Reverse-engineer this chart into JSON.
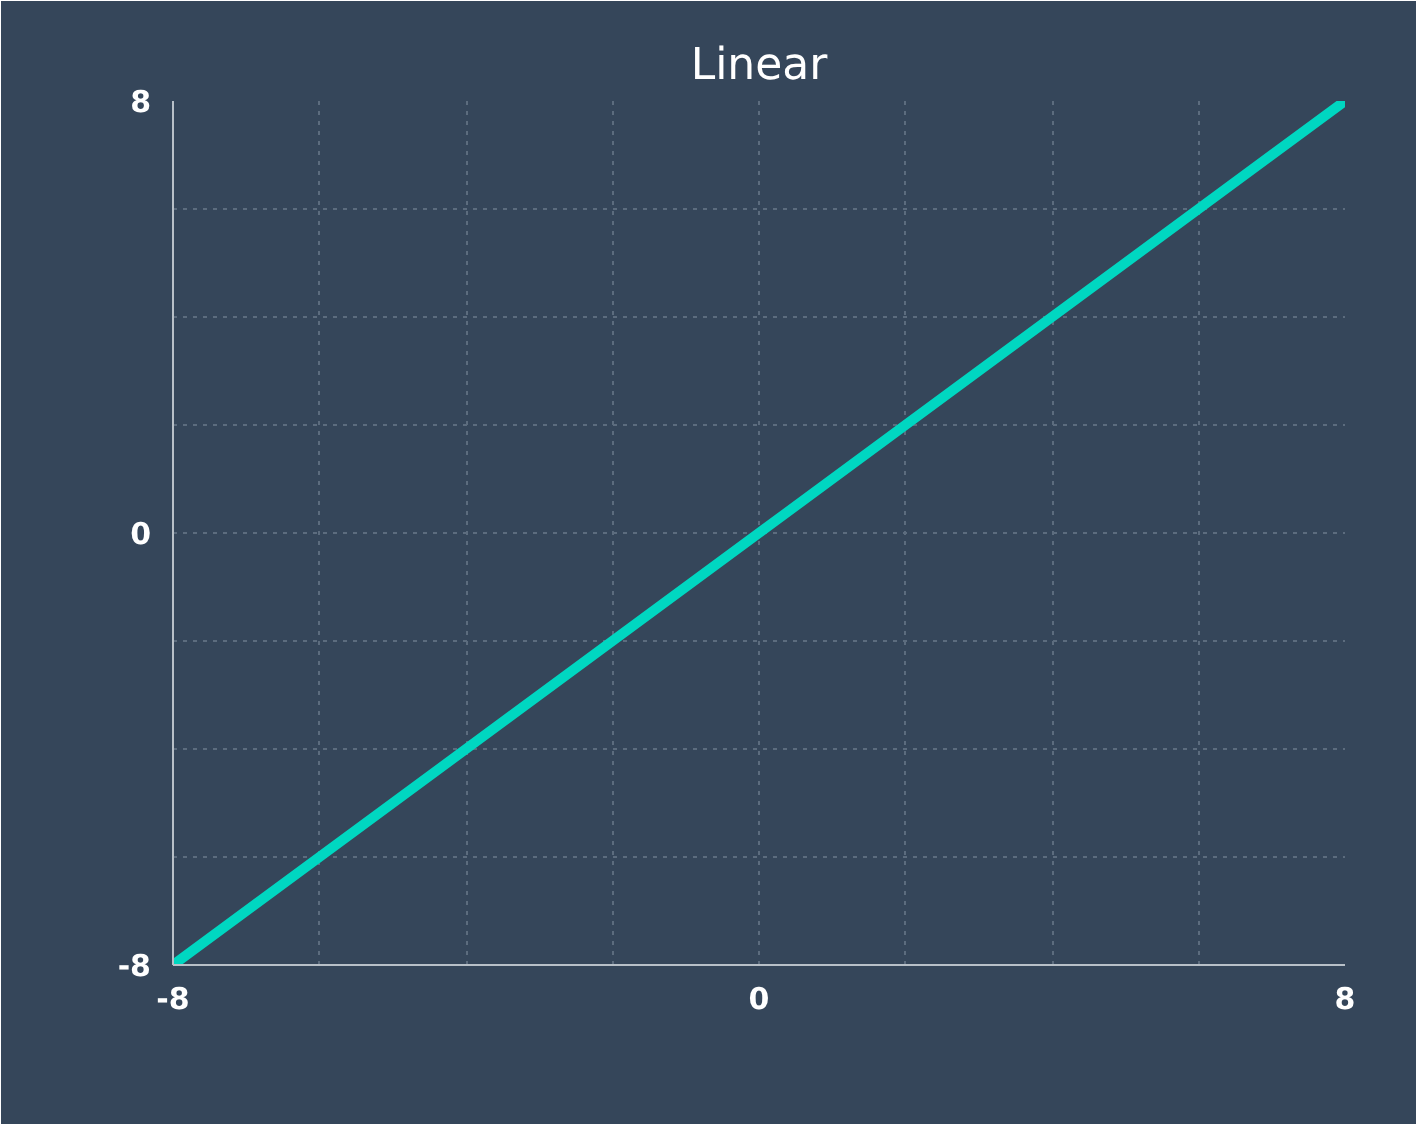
{
  "chart_data": {
    "type": "line",
    "title": "Linear",
    "x": [
      -8,
      8
    ],
    "series": [
      {
        "color": "#00d7c1",
        "values": [
          -8,
          8
        ]
      }
    ],
    "xlim": [
      -8,
      8
    ],
    "ylim": [
      -8,
      8
    ],
    "xticks": [
      -8,
      {
        "value": -6,
        "label": null
      },
      {
        "value": -4,
        "label": null
      },
      {
        "value": -2,
        "label": null
      },
      0,
      {
        "value": 2,
        "label": null
      },
      {
        "value": 4,
        "label": null
      },
      {
        "value": 6,
        "label": null
      },
      8
    ],
    "yticks": [
      -8,
      {
        "value": -6,
        "label": null
      },
      {
        "value": -4,
        "label": null
      },
      {
        "value": -2,
        "label": null
      },
      0,
      {
        "value": 2,
        "label": null
      },
      {
        "value": 4,
        "label": null
      },
      {
        "value": 6,
        "label": null
      },
      8
    ],
    "grid": true,
    "marker": "none",
    "line_style": "solid"
  }
}
